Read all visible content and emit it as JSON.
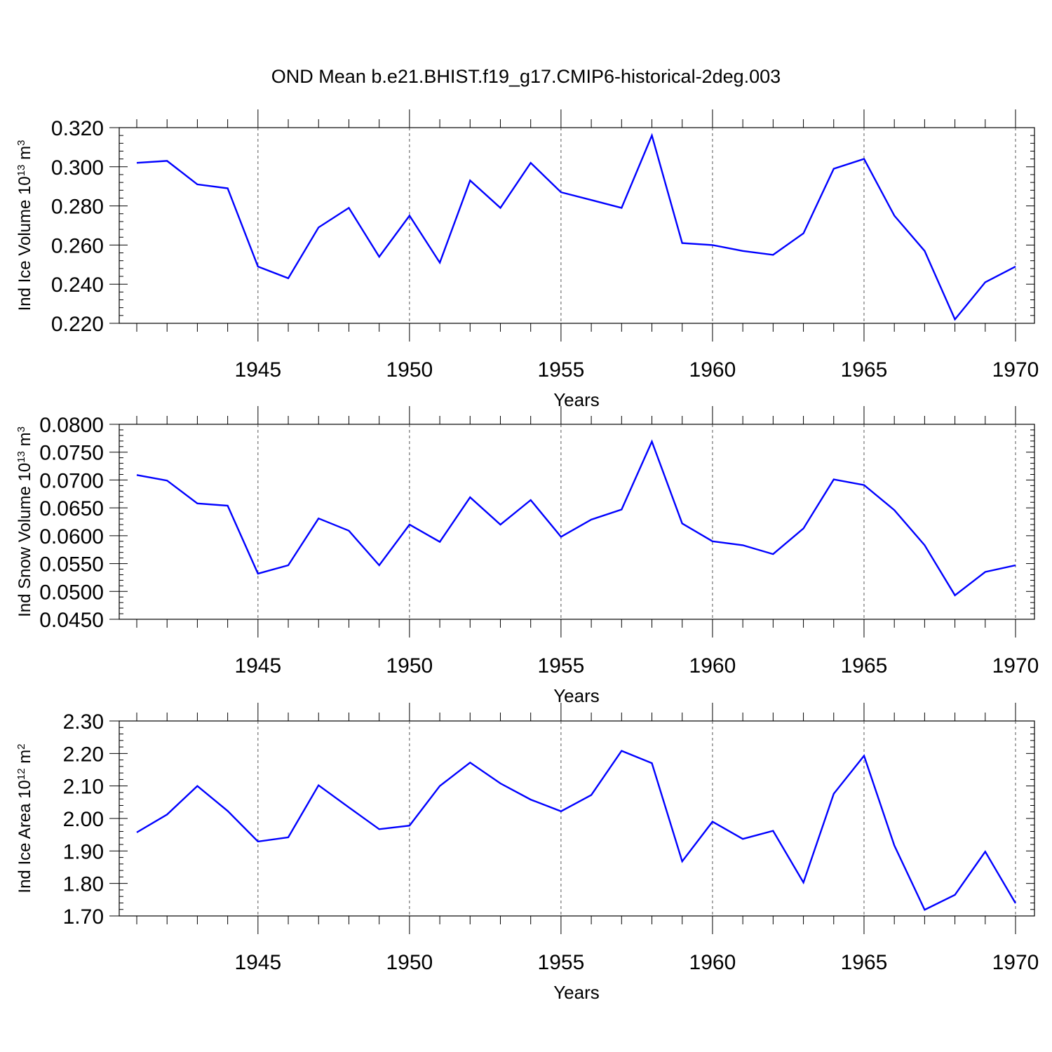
{
  "figure": {
    "title": "OND Mean b.e21.BHIST.f19_g17.CMIP6-historical-2deg.003"
  },
  "colors": {
    "line": "#0000ff",
    "axis": "#000000",
    "grid": "#555555"
  },
  "chart_data": [
    {
      "type": "line",
      "id": "ice-volume",
      "title": "",
      "ylabel": "Ind Ice Volume",
      "ylabel_unit": {
        "base": "10",
        "exp": "13",
        "unit": "m",
        "unit_exp": "3"
      },
      "xlabel": "Years",
      "xlim": [
        1941,
        1970
      ],
      "ylim": [
        0.22,
        0.32
      ],
      "yticks": [
        "0.220",
        "0.240",
        "0.260",
        "0.280",
        "0.300",
        "0.320"
      ],
      "xticks": [
        "1945",
        "1950",
        "1955",
        "1960",
        "1965",
        "1970"
      ],
      "x": [
        1941,
        1942,
        1943,
        1944,
        1945,
        1946,
        1947,
        1948,
        1949,
        1950,
        1951,
        1952,
        1953,
        1954,
        1955,
        1956,
        1957,
        1958,
        1959,
        1960,
        1961,
        1962,
        1963,
        1964,
        1965,
        1966,
        1967,
        1968,
        1969,
        1970
      ],
      "series": [
        {
          "name": "Ind Ice Volume",
          "values": [
            0.302,
            0.303,
            0.291,
            0.289,
            0.249,
            0.243,
            0.269,
            0.279,
            0.254,
            0.275,
            0.251,
            0.293,
            0.279,
            0.302,
            0.287,
            0.283,
            0.279,
            0.316,
            0.261,
            0.26,
            0.257,
            0.255,
            0.266,
            0.299,
            0.304,
            0.275,
            0.257,
            0.222,
            0.241,
            0.249
          ]
        }
      ]
    },
    {
      "type": "line",
      "id": "snow-volume",
      "title": "",
      "ylabel": "Ind Snow Volume",
      "ylabel_unit": {
        "base": "10",
        "exp": "13",
        "unit": "m",
        "unit_exp": "3"
      },
      "xlabel": "Years",
      "xlim": [
        1941,
        1970
      ],
      "ylim": [
        0.045,
        0.08
      ],
      "yticks": [
        "0.0450",
        "0.0500",
        "0.0550",
        "0.0600",
        "0.0650",
        "0.0700",
        "0.0750",
        "0.0800"
      ],
      "xticks": [
        "1945",
        "1950",
        "1955",
        "1960",
        "1965",
        "1970"
      ],
      "x": [
        1941,
        1942,
        1943,
        1944,
        1945,
        1946,
        1947,
        1948,
        1949,
        1950,
        1951,
        1952,
        1953,
        1954,
        1955,
        1956,
        1957,
        1958,
        1959,
        1960,
        1961,
        1962,
        1963,
        1964,
        1965,
        1966,
        1967,
        1968,
        1969,
        1970
      ],
      "series": [
        {
          "name": "Ind Snow Volume",
          "values": [
            0.0709,
            0.0699,
            0.0658,
            0.0654,
            0.0532,
            0.0547,
            0.0631,
            0.0609,
            0.0547,
            0.062,
            0.0589,
            0.0669,
            0.062,
            0.0664,
            0.0598,
            0.0629,
            0.0647,
            0.0769,
            0.0622,
            0.059,
            0.0583,
            0.0567,
            0.0613,
            0.0701,
            0.0691,
            0.0646,
            0.0583,
            0.0493,
            0.0535,
            0.0547
          ]
        }
      ]
    },
    {
      "type": "line",
      "id": "ice-area",
      "title": "",
      "ylabel": "Ind Ice Area",
      "ylabel_unit": {
        "base": "10",
        "exp": "12",
        "unit": "m",
        "unit_exp": "2"
      },
      "xlabel": "Years",
      "xlim": [
        1941,
        1970
      ],
      "ylim": [
        1.7,
        2.3
      ],
      "yticks": [
        "1.70",
        "1.80",
        "1.90",
        "2.00",
        "2.10",
        "2.20",
        "2.30"
      ],
      "xticks": [
        "1945",
        "1950",
        "1955",
        "1960",
        "1965",
        "1970"
      ],
      "x": [
        1941,
        1942,
        1943,
        1944,
        1945,
        1946,
        1947,
        1948,
        1949,
        1950,
        1951,
        1952,
        1953,
        1954,
        1955,
        1956,
        1957,
        1958,
        1959,
        1960,
        1961,
        1962,
        1963,
        1964,
        1965,
        1966,
        1967,
        1968,
        1969,
        1970
      ],
      "series": [
        {
          "name": "Ind Ice Area",
          "values": [
            1.957,
            2.012,
            2.1,
            2.023,
            1.929,
            1.942,
            2.102,
            2.034,
            1.967,
            1.978,
            2.1,
            2.172,
            2.108,
            2.058,
            2.022,
            2.072,
            2.208,
            2.17,
            1.868,
            1.99,
            1.937,
            1.962,
            1.803,
            2.076,
            2.193,
            1.917,
            1.719,
            1.765,
            1.898,
            1.739
          ]
        }
      ]
    }
  ]
}
